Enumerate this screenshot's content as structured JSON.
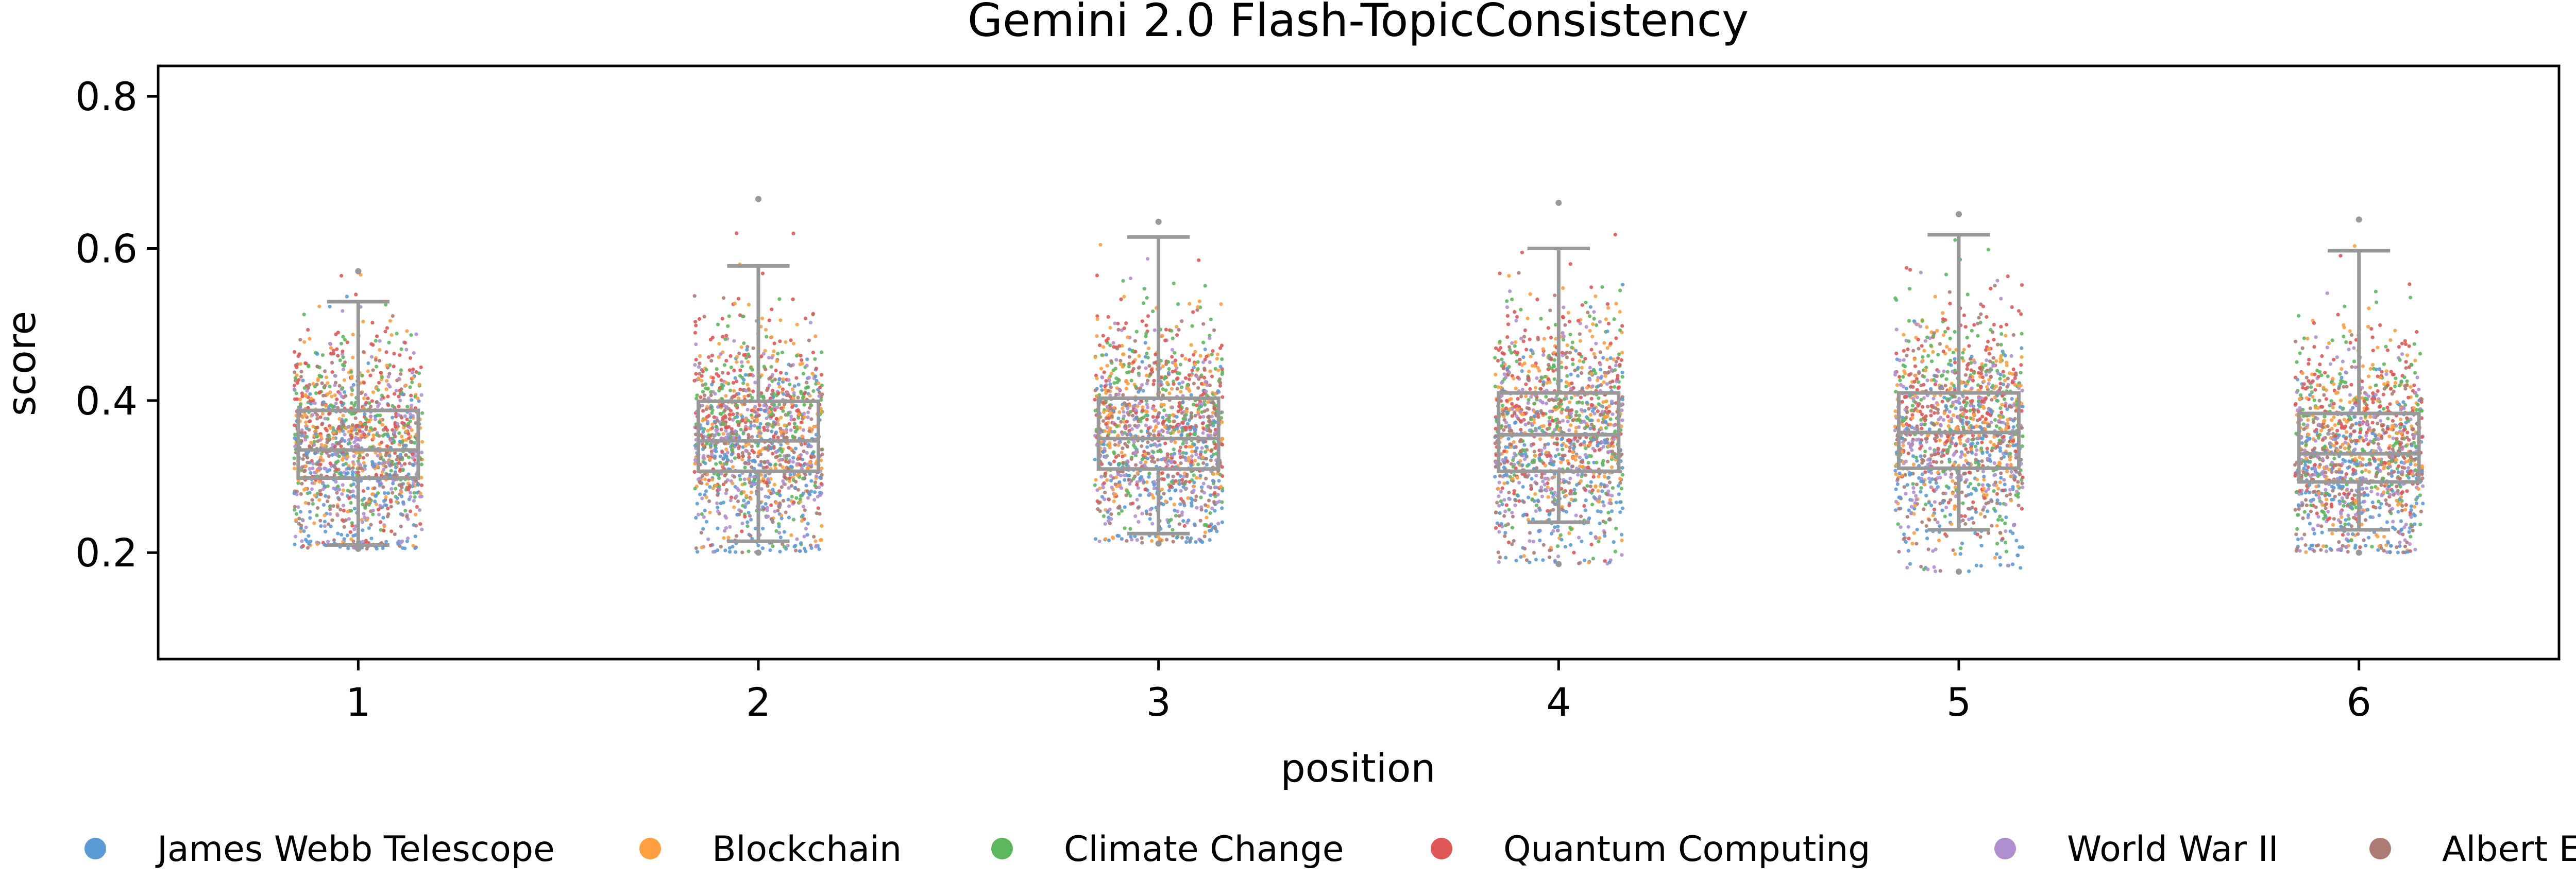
{
  "chart_data": {
    "type": "scatter",
    "title": "Gemini 2.0 Flash-TopicConsistency",
    "xlabel": "position",
    "ylabel": "score",
    "categories": [
      "1",
      "2",
      "3",
      "4",
      "5",
      "6"
    ],
    "ylim": [
      0.06,
      0.84
    ],
    "yticks": [
      "0.2",
      "0.4",
      "0.6",
      "0.8"
    ],
    "grid": false,
    "legend_position": "bottom",
    "box_color": "#999999",
    "points_per_topic_per_position": 220,
    "series": [
      {
        "name": "James Webb Telescope",
        "color": "#5b9bd5",
        "mean_offset": -0.045
      },
      {
        "name": "Blockchain",
        "color": "#ff9f3f",
        "mean_offset": 0.02
      },
      {
        "name": "Climate Change",
        "color": "#5cb85c",
        "mean_offset": 0.03
      },
      {
        "name": "Quantum Computing",
        "color": "#e05757",
        "mean_offset": 0.04
      },
      {
        "name": "World War II",
        "color": "#b08fd0",
        "mean_offset": -0.01
      },
      {
        "name": "Albert Einstein",
        "color": "#ad7b74",
        "mean_offset": -0.02
      }
    ],
    "boxes": [
      {
        "position": "1",
        "whisker_low": 0.21,
        "q1": 0.298,
        "median": 0.335,
        "q3": 0.387,
        "whisker_high": 0.53,
        "data_min": 0.205,
        "data_max": 0.57
      },
      {
        "position": "2",
        "whisker_low": 0.215,
        "q1": 0.307,
        "median": 0.347,
        "q3": 0.399,
        "whisker_high": 0.577,
        "data_min": 0.2,
        "data_max": 0.665
      },
      {
        "position": "3",
        "whisker_low": 0.225,
        "q1": 0.31,
        "median": 0.35,
        "q3": 0.403,
        "whisker_high": 0.615,
        "data_min": 0.212,
        "data_max": 0.635
      },
      {
        "position": "4",
        "whisker_low": 0.24,
        "q1": 0.307,
        "median": 0.355,
        "q3": 0.41,
        "whisker_high": 0.6,
        "data_min": 0.185,
        "data_max": 0.66
      },
      {
        "position": "5",
        "whisker_low": 0.23,
        "q1": 0.311,
        "median": 0.358,
        "q3": 0.41,
        "whisker_high": 0.618,
        "data_min": 0.175,
        "data_max": 0.645
      },
      {
        "position": "6",
        "whisker_low": 0.23,
        "q1": 0.293,
        "median": 0.33,
        "q3": 0.383,
        "whisker_high": 0.597,
        "data_min": 0.2,
        "data_max": 0.638
      }
    ]
  }
}
